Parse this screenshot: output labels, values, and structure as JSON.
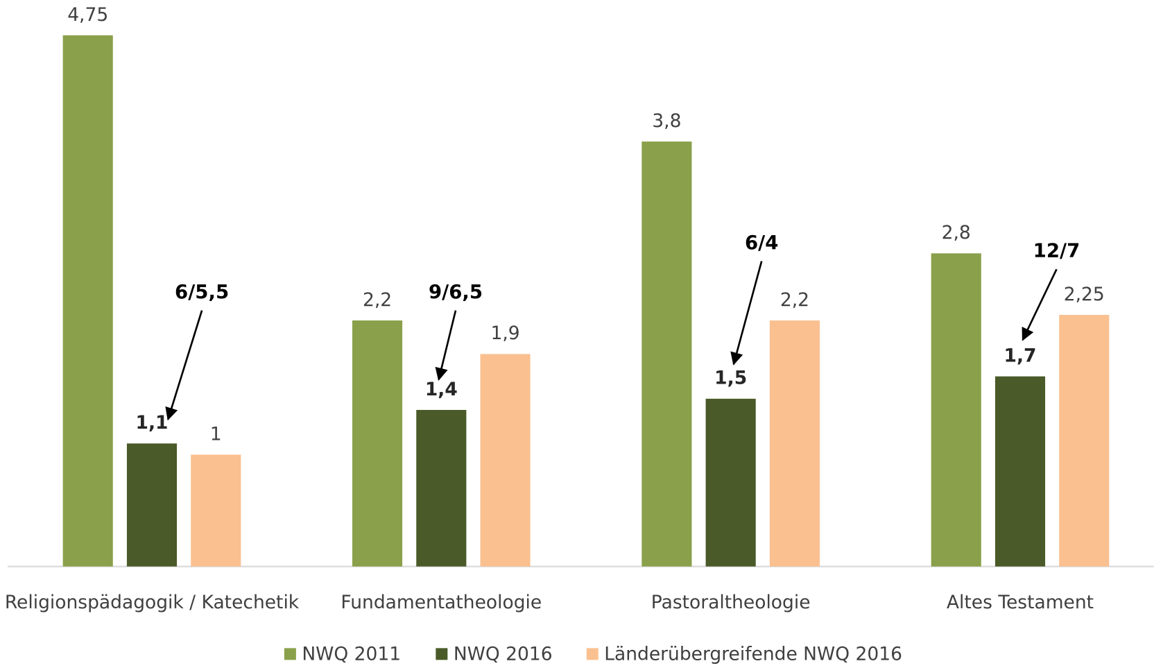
{
  "chart_data": {
    "type": "bar",
    "categories": [
      "Religionspädagogik / Katechetik",
      "Fundamentatheologie",
      "Pastoraltheologie",
      "Altes Testament"
    ],
    "series": [
      {
        "name": "NWQ 2011",
        "color": "#8aa04a",
        "values": [
          4.75,
          2.2,
          3.8,
          2.8
        ],
        "value_labels": [
          "4,75",
          "2,2",
          "3,8",
          "2,8"
        ]
      },
      {
        "name": "NWQ 2016",
        "color": "#4a5a28",
        "values": [
          1.1,
          1.4,
          1.5,
          1.7
        ],
        "value_labels": [
          "1,1",
          "1,4",
          "1,5",
          "1,7"
        ]
      },
      {
        "name": "Länderübergreifende NWQ 2016",
        "color": "#fac090",
        "values": [
          1,
          1.9,
          2.2,
          2.25
        ],
        "value_labels": [
          "1",
          "1,9",
          "2,2",
          "2,25"
        ]
      }
    ],
    "annotations": [
      "6/5,5",
      "9/6,5",
      "6/4",
      "12/7"
    ],
    "ylim": [
      0,
      5
    ],
    "legend": "bottom"
  }
}
